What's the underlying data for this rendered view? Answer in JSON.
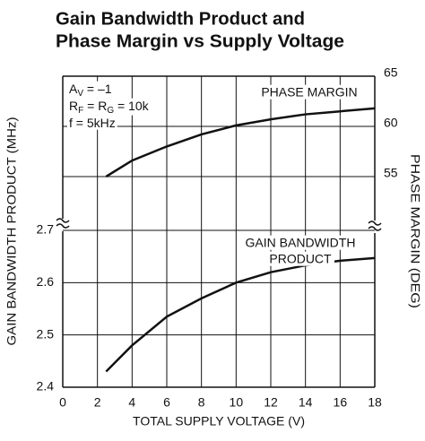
{
  "chart_data": {
    "type": "line",
    "title": [
      "Gain Bandwidth Product and",
      "Phase Margin vs Supply Voltage"
    ],
    "x_label": "TOTAL SUPPLY VOLTAGE (V)",
    "y_label": "GAIN BANDWIDTH PRODUCT (MHz)",
    "y2_label": "PHASE MARGIN (DEG)",
    "annotations": [
      {
        "parts": [
          {
            "text": "A"
          },
          {
            "text": "V",
            "sub": true
          },
          {
            "text": " = –1"
          }
        ]
      },
      {
        "parts": [
          {
            "text": "R"
          },
          {
            "text": "F",
            "sub": true
          },
          {
            "text": " = R"
          },
          {
            "text": "G",
            "sub": true
          },
          {
            "text": " = 10k"
          }
        ]
      },
      {
        "parts": [
          {
            "text": "f = 5kHz"
          }
        ]
      }
    ],
    "x": [
      2.5,
      4,
      6,
      8,
      10,
      12,
      14,
      16,
      18
    ],
    "series": [
      {
        "label": [
          "PHASE MARGIN"
        ],
        "axis": "y2",
        "color": "#111111",
        "values": [
          55,
          56.6,
          58,
          59.2,
          60.1,
          60.7,
          61.2,
          61.5,
          61.8
        ]
      },
      {
        "label": [
          "GAIN BANDWIDTH",
          "PRODUCT"
        ],
        "axis": "y",
        "color": "#111111",
        "values": [
          2.43,
          2.48,
          2.535,
          2.57,
          2.6,
          2.62,
          2.633,
          2.642,
          2.647
        ]
      }
    ],
    "xlim": [
      0,
      18
    ],
    "xticks": [
      0,
      2,
      4,
      6,
      8,
      10,
      12,
      14,
      16,
      18
    ],
    "ylim": [
      2.4,
      2.7
    ],
    "yticks": [
      2.4,
      2.5,
      2.6,
      2.7
    ],
    "y2lim": [
      55,
      65
    ],
    "y2ticks": [
      55,
      60,
      65
    ],
    "grid": true
  }
}
